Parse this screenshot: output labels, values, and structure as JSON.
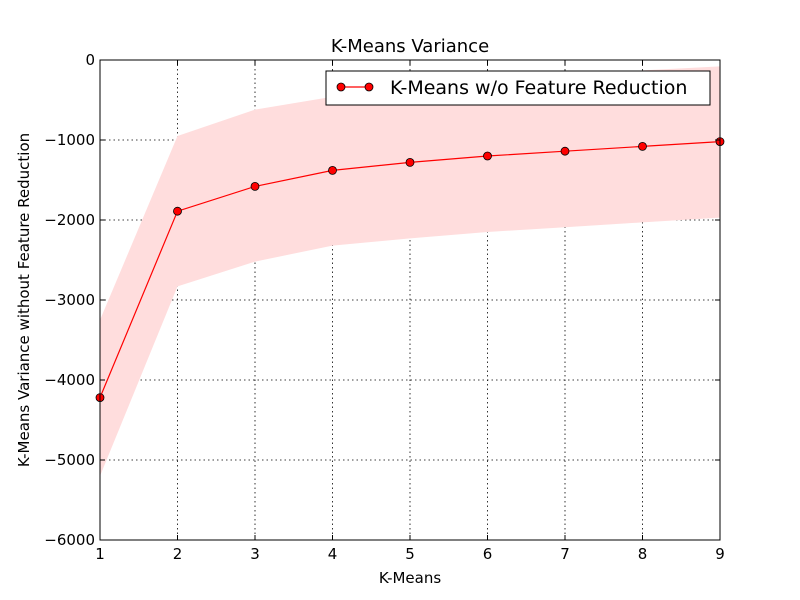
{
  "chart_data": {
    "type": "line",
    "title": "K-Means Variance",
    "xlabel": "K-Means",
    "ylabel": "K-Means Variance without Feature Reduction",
    "xlim": [
      1,
      9
    ],
    "ylim": [
      -6000,
      0
    ],
    "x_ticks": [
      1,
      2,
      3,
      4,
      5,
      6,
      7,
      8,
      9
    ],
    "y_ticks": [
      -6000,
      -5000,
      -4000,
      -3000,
      -2000,
      -1000,
      0
    ],
    "grid": true,
    "legend_position": "top-right",
    "series": [
      {
        "name": "K-Means w/o Feature Reduction",
        "color": "#ff0000",
        "marker": "circle",
        "x": [
          1,
          2,
          3,
          4,
          5,
          6,
          7,
          8,
          9
        ],
        "y": [
          -4220,
          -1890,
          -1580,
          -1380,
          -1280,
          -1200,
          -1140,
          -1080,
          -1020
        ],
        "band_upper": [
          -3250,
          -950,
          -620,
          -460,
          -340,
          -260,
          -190,
          -130,
          -80
        ],
        "band_lower": [
          -5200,
          -2830,
          -2520,
          -2320,
          -2230,
          -2150,
          -2090,
          -2030,
          -1970
        ],
        "band_color": "#ffdddd"
      }
    ]
  }
}
